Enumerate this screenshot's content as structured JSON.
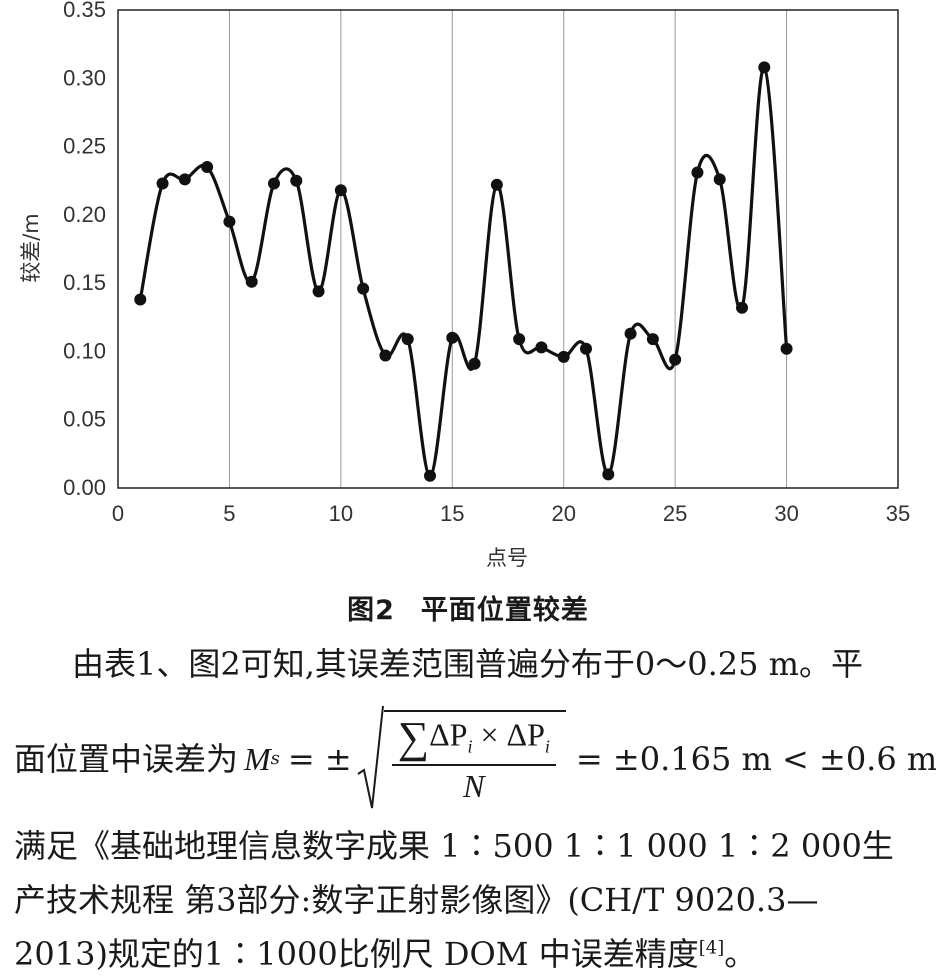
{
  "chart_data": {
    "type": "line",
    "xlabel": "点号",
    "ylabel": "较差/m",
    "xlim": [
      0,
      35
    ],
    "ylim": [
      0.0,
      0.35
    ],
    "xticks": [
      "0",
      "5",
      "10",
      "15",
      "20",
      "25",
      "30",
      "35"
    ],
    "yticks": [
      "0.00",
      "0.05",
      "0.10",
      "0.15",
      "0.20",
      "0.25",
      "0.30",
      "0.35"
    ],
    "grid": "vertical",
    "x": [
      1,
      2,
      3,
      4,
      5,
      6,
      7,
      8,
      9,
      10,
      11,
      12,
      13,
      14,
      15,
      16,
      17,
      18,
      19,
      20,
      21,
      22,
      23,
      24,
      25,
      26,
      27,
      28,
      29,
      30
    ],
    "y": [
      0.138,
      0.223,
      0.226,
      0.235,
      0.195,
      0.151,
      0.223,
      0.225,
      0.144,
      0.218,
      0.146,
      0.097,
      0.109,
      0.009,
      0.11,
      0.091,
      0.222,
      0.109,
      0.103,
      0.096,
      0.102,
      0.01,
      0.113,
      0.109,
      0.094,
      0.231,
      0.226,
      0.132,
      0.308,
      0.102
    ]
  },
  "caption": {
    "number": "图2",
    "title": "平面位置较差"
  },
  "paragraph": {
    "line1": "由表1、图2可知,其误差范围普遍分布于0～0.25 m。平",
    "line2_pre": "面位置中误差为",
    "formula": {
      "lhs_M": "M",
      "lhs_sub": "s",
      "pm": "= ±",
      "num_sigma": "∑",
      "num_term": "ΔP",
      "num_sub": "i",
      "num_times": "×",
      "den": "N",
      "rhs": "= ±0.165 m < ±0.6 m,"
    },
    "line3": "满足《基础地理信息数字成果 1∶500 1∶1 000 1∶2 000生",
    "line4": "产技术规程 第3部分:数字正射影像图》(CH/T 9020.3—",
    "line5_pre": "2013)规定的1∶1000比例尺 DOM 中误差精度",
    "ref": "[4]",
    "line5_post": "。"
  }
}
